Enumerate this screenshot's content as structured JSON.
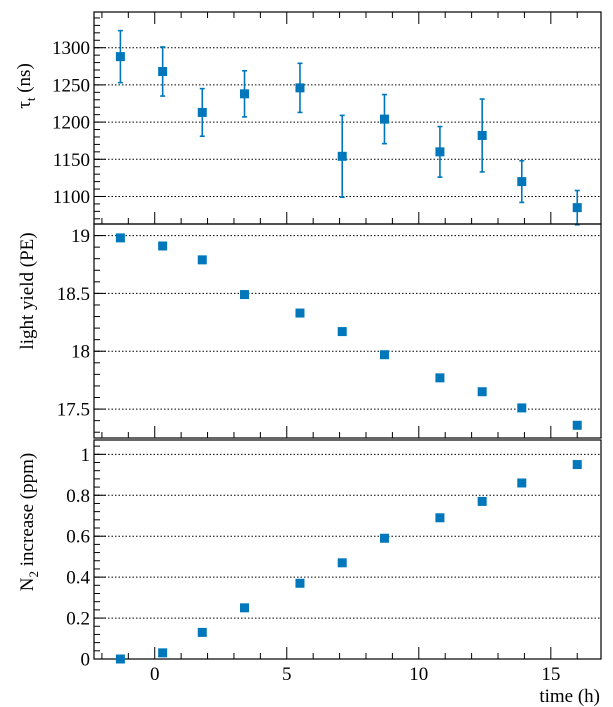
{
  "figure": {
    "x_label": "time (h)",
    "x_ticks": [
      0,
      5,
      10,
      15
    ],
    "x_range": [
      -2.3,
      16.9
    ],
    "marker_color": "#0077bb",
    "grid_style": "dotted horizontal"
  },
  "chart_data": [
    {
      "type": "scatter",
      "ylabel_main": "τ",
      "ylabel_sub": "t",
      "ylabel_unit": "(ns)",
      "ylim": [
        1063,
        1348
      ],
      "yticks": [
        1100,
        1150,
        1200,
        1250,
        1300
      ],
      "grid": true,
      "error_bars": true,
      "x": [
        -1.3,
        0.3,
        1.8,
        3.4,
        5.5,
        7.1,
        8.7,
        10.8,
        12.4,
        13.9,
        16.0
      ],
      "y": [
        1288,
        1268,
        1213,
        1238,
        1246,
        1154,
        1204,
        1160,
        1182,
        1120,
        1085
      ],
      "yerr": [
        35,
        33,
        32,
        31,
        33,
        55,
        33,
        34,
        49,
        28,
        23
      ]
    },
    {
      "type": "scatter",
      "ylabel": "light yield (PE)",
      "ylim": [
        17.25,
        19.1
      ],
      "yticks": [
        17.5,
        18,
        18.5,
        19
      ],
      "ytick_labels": [
        "17.5",
        "18",
        "18.5",
        "19"
      ],
      "grid": true,
      "x": [
        -1.3,
        0.3,
        1.8,
        3.4,
        5.5,
        7.1,
        8.7,
        10.8,
        12.4,
        13.9,
        16.0
      ],
      "y": [
        18.98,
        18.91,
        18.79,
        18.49,
        18.33,
        18.17,
        17.97,
        17.77,
        17.65,
        17.51,
        17.36
      ]
    },
    {
      "type": "scatter",
      "ylabel_main": "N",
      "ylabel_sub": "2",
      "ylabel_rest": " increase (ppm)",
      "ylim": [
        0,
        1.07
      ],
      "yticks": [
        0,
        0.2,
        0.4,
        0.6,
        0.8,
        1
      ],
      "ytick_labels": [
        "0",
        "0.2",
        "0.4",
        "0.6",
        "0.8",
        "1"
      ],
      "grid": true,
      "x": [
        -1.3,
        0.3,
        1.8,
        3.4,
        5.5,
        7.1,
        8.7,
        10.8,
        12.4,
        13.9,
        16.0
      ],
      "y": [
        0.0,
        0.03,
        0.13,
        0.25,
        0.37,
        0.47,
        0.59,
        0.69,
        0.77,
        0.86,
        0.95
      ]
    }
  ]
}
